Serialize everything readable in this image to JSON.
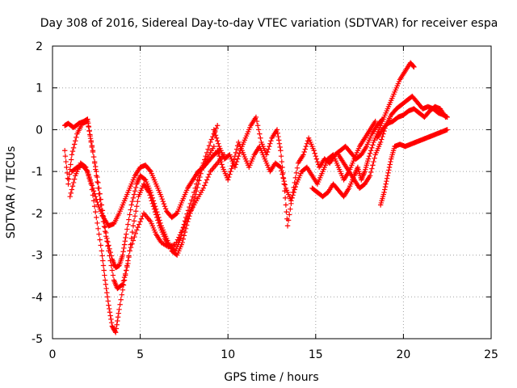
{
  "chart_data": {
    "type": "scatter",
    "title": "Day 308 of 2016, Sidereal Day-to-day VTEC variation (SDTVAR) for receiver espa",
    "xlabel": "GPS time / hours",
    "ylabel": "SDTVAR / TECUs",
    "xlim": [
      0,
      25
    ],
    "ylim": [
      -5,
      2
    ],
    "xticks": [
      0,
      5,
      10,
      15,
      20,
      25
    ],
    "yticks": [
      -5,
      -4,
      -3,
      -2,
      -1,
      0,
      1,
      2
    ],
    "xtick_labels": [
      "0",
      "5",
      "10",
      "15",
      "20",
      "25"
    ],
    "ytick_labels": [
      "-5",
      "-4",
      "-3",
      "-2",
      "-1",
      "0",
      "1",
      "2"
    ],
    "grid": true,
    "marker": "+",
    "color": "#ff0000",
    "series": [
      {
        "x": [
          0.7,
          0.9,
          1.2,
          1.5,
          1.8,
          2.0,
          2.2,
          2.5,
          2.8,
          3.1,
          3.4,
          3.6,
          3.8,
          4.0,
          4.2,
          4.5,
          4.8,
          5.0,
          5.3,
          5.6,
          5.9,
          6.2,
          6.5,
          6.8,
          7.1,
          7.4,
          7.7,
          8.0,
          8.3,
          8.6,
          9.0,
          9.4
        ],
        "y": [
          0.1,
          0.15,
          0.05,
          0.15,
          0.2,
          0.25,
          -0.3,
          -1.0,
          -1.8,
          -2.6,
          -3.1,
          -3.3,
          -3.25,
          -3.0,
          -2.5,
          -1.8,
          -1.3,
          -1.1,
          -1.2,
          -1.5,
          -1.9,
          -2.3,
          -2.6,
          -2.9,
          -3.0,
          -2.7,
          -2.2,
          -1.8,
          -1.3,
          -0.8,
          -0.3,
          0.1
        ]
      },
      {
        "x": [
          0.7,
          0.9,
          1.1,
          1.4,
          1.7,
          2.0,
          2.3,
          2.6,
          2.9,
          3.2,
          3.5,
          3.7,
          4.0,
          4.3,
          4.6,
          4.9,
          5.2,
          5.5,
          5.8,
          6.1,
          6.4,
          6.7,
          7.0,
          7.3,
          7.6,
          8.0,
          8.4,
          8.8,
          9.2
        ],
        "y": [
          -0.5,
          -1.3,
          -0.6,
          -0.1,
          0.15,
          0.2,
          -0.5,
          -1.4,
          -2.2,
          -2.9,
          -3.6,
          -3.8,
          -3.7,
          -3.2,
          -2.3,
          -1.6,
          -1.3,
          -1.5,
          -1.9,
          -2.3,
          -2.6,
          -2.8,
          -2.9,
          -2.6,
          -2.1,
          -1.6,
          -1.0,
          -0.7,
          -0.4
        ]
      },
      {
        "x": [
          1.0,
          1.3,
          1.6,
          1.9,
          2.2,
          2.5,
          2.8,
          3.0,
          3.2,
          3.4,
          3.6,
          3.8,
          4.1,
          4.4,
          4.8,
          5.2,
          5.6,
          5.9,
          6.2,
          6.6,
          7.0,
          7.4,
          7.8,
          8.2,
          8.6,
          9.0,
          9.4,
          9.8
        ],
        "y": [
          -1.6,
          -1.1,
          -0.8,
          -0.9,
          -1.3,
          -2.1,
          -2.9,
          -3.6,
          -4.2,
          -4.7,
          -4.85,
          -4.3,
          -3.6,
          -2.9,
          -2.4,
          -2.0,
          -2.2,
          -2.5,
          -2.7,
          -2.8,
          -2.75,
          -2.4,
          -2.0,
          -1.7,
          -1.4,
          -1.0,
          -0.8,
          -0.6
        ]
      },
      {
        "x": [
          1.1,
          1.4,
          1.7,
          2.0,
          2.3,
          2.6,
          2.9,
          3.2,
          3.5,
          3.8,
          4.1,
          4.4,
          4.7,
          5.0,
          5.3,
          5.6,
          5.9,
          6.2,
          6.5,
          6.8,
          7.1,
          7.4,
          7.7,
          8.0,
          8.3,
          8.6,
          8.9,
          9.2,
          9.5
        ],
        "y": [
          -1.0,
          -0.9,
          -0.85,
          -1.0,
          -1.4,
          -1.8,
          -2.1,
          -2.3,
          -2.25,
          -2.0,
          -1.7,
          -1.4,
          -1.1,
          -0.9,
          -0.85,
          -1.0,
          -1.3,
          -1.6,
          -1.95,
          -2.1,
          -2.0,
          -1.7,
          -1.4,
          -1.2,
          -1.0,
          -0.9,
          -0.75,
          -0.6,
          -0.5
        ]
      },
      {
        "x": [
          9.2,
          9.5,
          9.8,
          10.1,
          10.4,
          10.7,
          11.0,
          11.3,
          11.6,
          11.9,
          12.2,
          12.5,
          12.8,
          13.0,
          13.2,
          13.4,
          13.7,
          14.0,
          14.3,
          14.6,
          14.9,
          15.2,
          15.5,
          15.8,
          16.1,
          16.4,
          16.7,
          17.0,
          17.3,
          17.6,
          17.9,
          18.2,
          18.5,
          18.8
        ],
        "y": [
          0.0,
          -0.4,
          -0.7,
          -0.6,
          -0.9,
          -0.5,
          -0.2,
          0.1,
          0.3,
          -0.3,
          -0.6,
          -0.2,
          0.0,
          -0.5,
          -1.3,
          -2.3,
          -1.5,
          -0.8,
          -0.6,
          -0.2,
          -0.5,
          -0.9,
          -0.7,
          -0.8,
          -0.6,
          -0.5,
          -0.4,
          -0.55,
          -0.7,
          -0.6,
          -0.4,
          -0.1,
          0.1,
          0.25
        ]
      },
      {
        "x": [
          9.4,
          9.7,
          10.0,
          10.3,
          10.6,
          10.9,
          11.2,
          11.5,
          11.8,
          12.1,
          12.4,
          12.7,
          13.0,
          13.3,
          13.6,
          13.9,
          14.2,
          14.5,
          14.8,
          15.1,
          15.4,
          15.7,
          16.0,
          16.3,
          16.6,
          16.9,
          17.2,
          17.5,
          17.8,
          18.1,
          18.4
        ],
        "y": [
          -0.5,
          -0.9,
          -1.2,
          -0.8,
          -0.3,
          -0.6,
          -0.9,
          -0.6,
          -0.4,
          -0.7,
          -1.0,
          -0.8,
          -0.9,
          -1.4,
          -1.7,
          -1.3,
          -1.0,
          -0.9,
          -1.1,
          -1.3,
          -1.0,
          -0.7,
          -0.6,
          -0.9,
          -1.2,
          -1.0,
          -0.7,
          -0.4,
          -0.2,
          0.0,
          0.2
        ]
      },
      {
        "x": [
          14.8,
          15.1,
          15.4,
          15.7,
          16.0,
          16.3,
          16.6,
          16.9,
          17.2,
          17.4,
          17.6,
          17.8,
          18.0,
          18.3,
          18.6,
          18.9,
          19.2,
          19.5,
          19.8,
          20.1,
          20.4,
          20.6
        ],
        "y": [
          -1.4,
          -1.5,
          -1.6,
          -1.5,
          -1.3,
          -1.45,
          -1.6,
          -1.4,
          -1.1,
          -0.9,
          -1.2,
          -1.0,
          -0.7,
          -0.3,
          0.0,
          0.3,
          0.6,
          0.9,
          1.2,
          1.4,
          1.6,
          1.5
        ]
      },
      {
        "x": [
          16.3,
          16.6,
          16.9,
          17.2,
          17.5,
          17.8,
          18.1,
          18.4,
          18.7,
          19.0,
          19.3,
          19.6,
          19.9,
          20.2,
          20.5,
          20.8,
          21.1,
          21.4,
          21.7,
          22.0,
          22.3,
          22.5
        ],
        "y": [
          -0.6,
          -0.8,
          -1.0,
          -1.2,
          -1.4,
          -1.3,
          -1.1,
          -0.6,
          -0.3,
          0.1,
          0.35,
          0.5,
          0.6,
          0.7,
          0.8,
          0.65,
          0.5,
          0.55,
          0.5,
          0.4,
          0.35,
          0.3
        ]
      },
      {
        "x": [
          18.7,
          18.9,
          19.1,
          19.3,
          19.5,
          19.8,
          20.1,
          20.4,
          20.7,
          21.0,
          21.3,
          21.6,
          21.9,
          22.2,
          22.5
        ],
        "y": [
          -1.8,
          -1.5,
          -1.1,
          -0.7,
          -0.4,
          -0.35,
          -0.4,
          -0.35,
          -0.3,
          -0.25,
          -0.2,
          -0.15,
          -0.1,
          -0.05,
          0.0
        ]
      },
      {
        "x": [
          18.5,
          18.8,
          19.1,
          19.4,
          19.7,
          20.0,
          20.3,
          20.6,
          20.9,
          21.2,
          21.5,
          21.8,
          22.1,
          22.4
        ],
        "y": [
          -0.2,
          0.0,
          0.15,
          0.2,
          0.3,
          0.35,
          0.45,
          0.5,
          0.4,
          0.3,
          0.45,
          0.55,
          0.5,
          0.3
        ]
      }
    ]
  }
}
